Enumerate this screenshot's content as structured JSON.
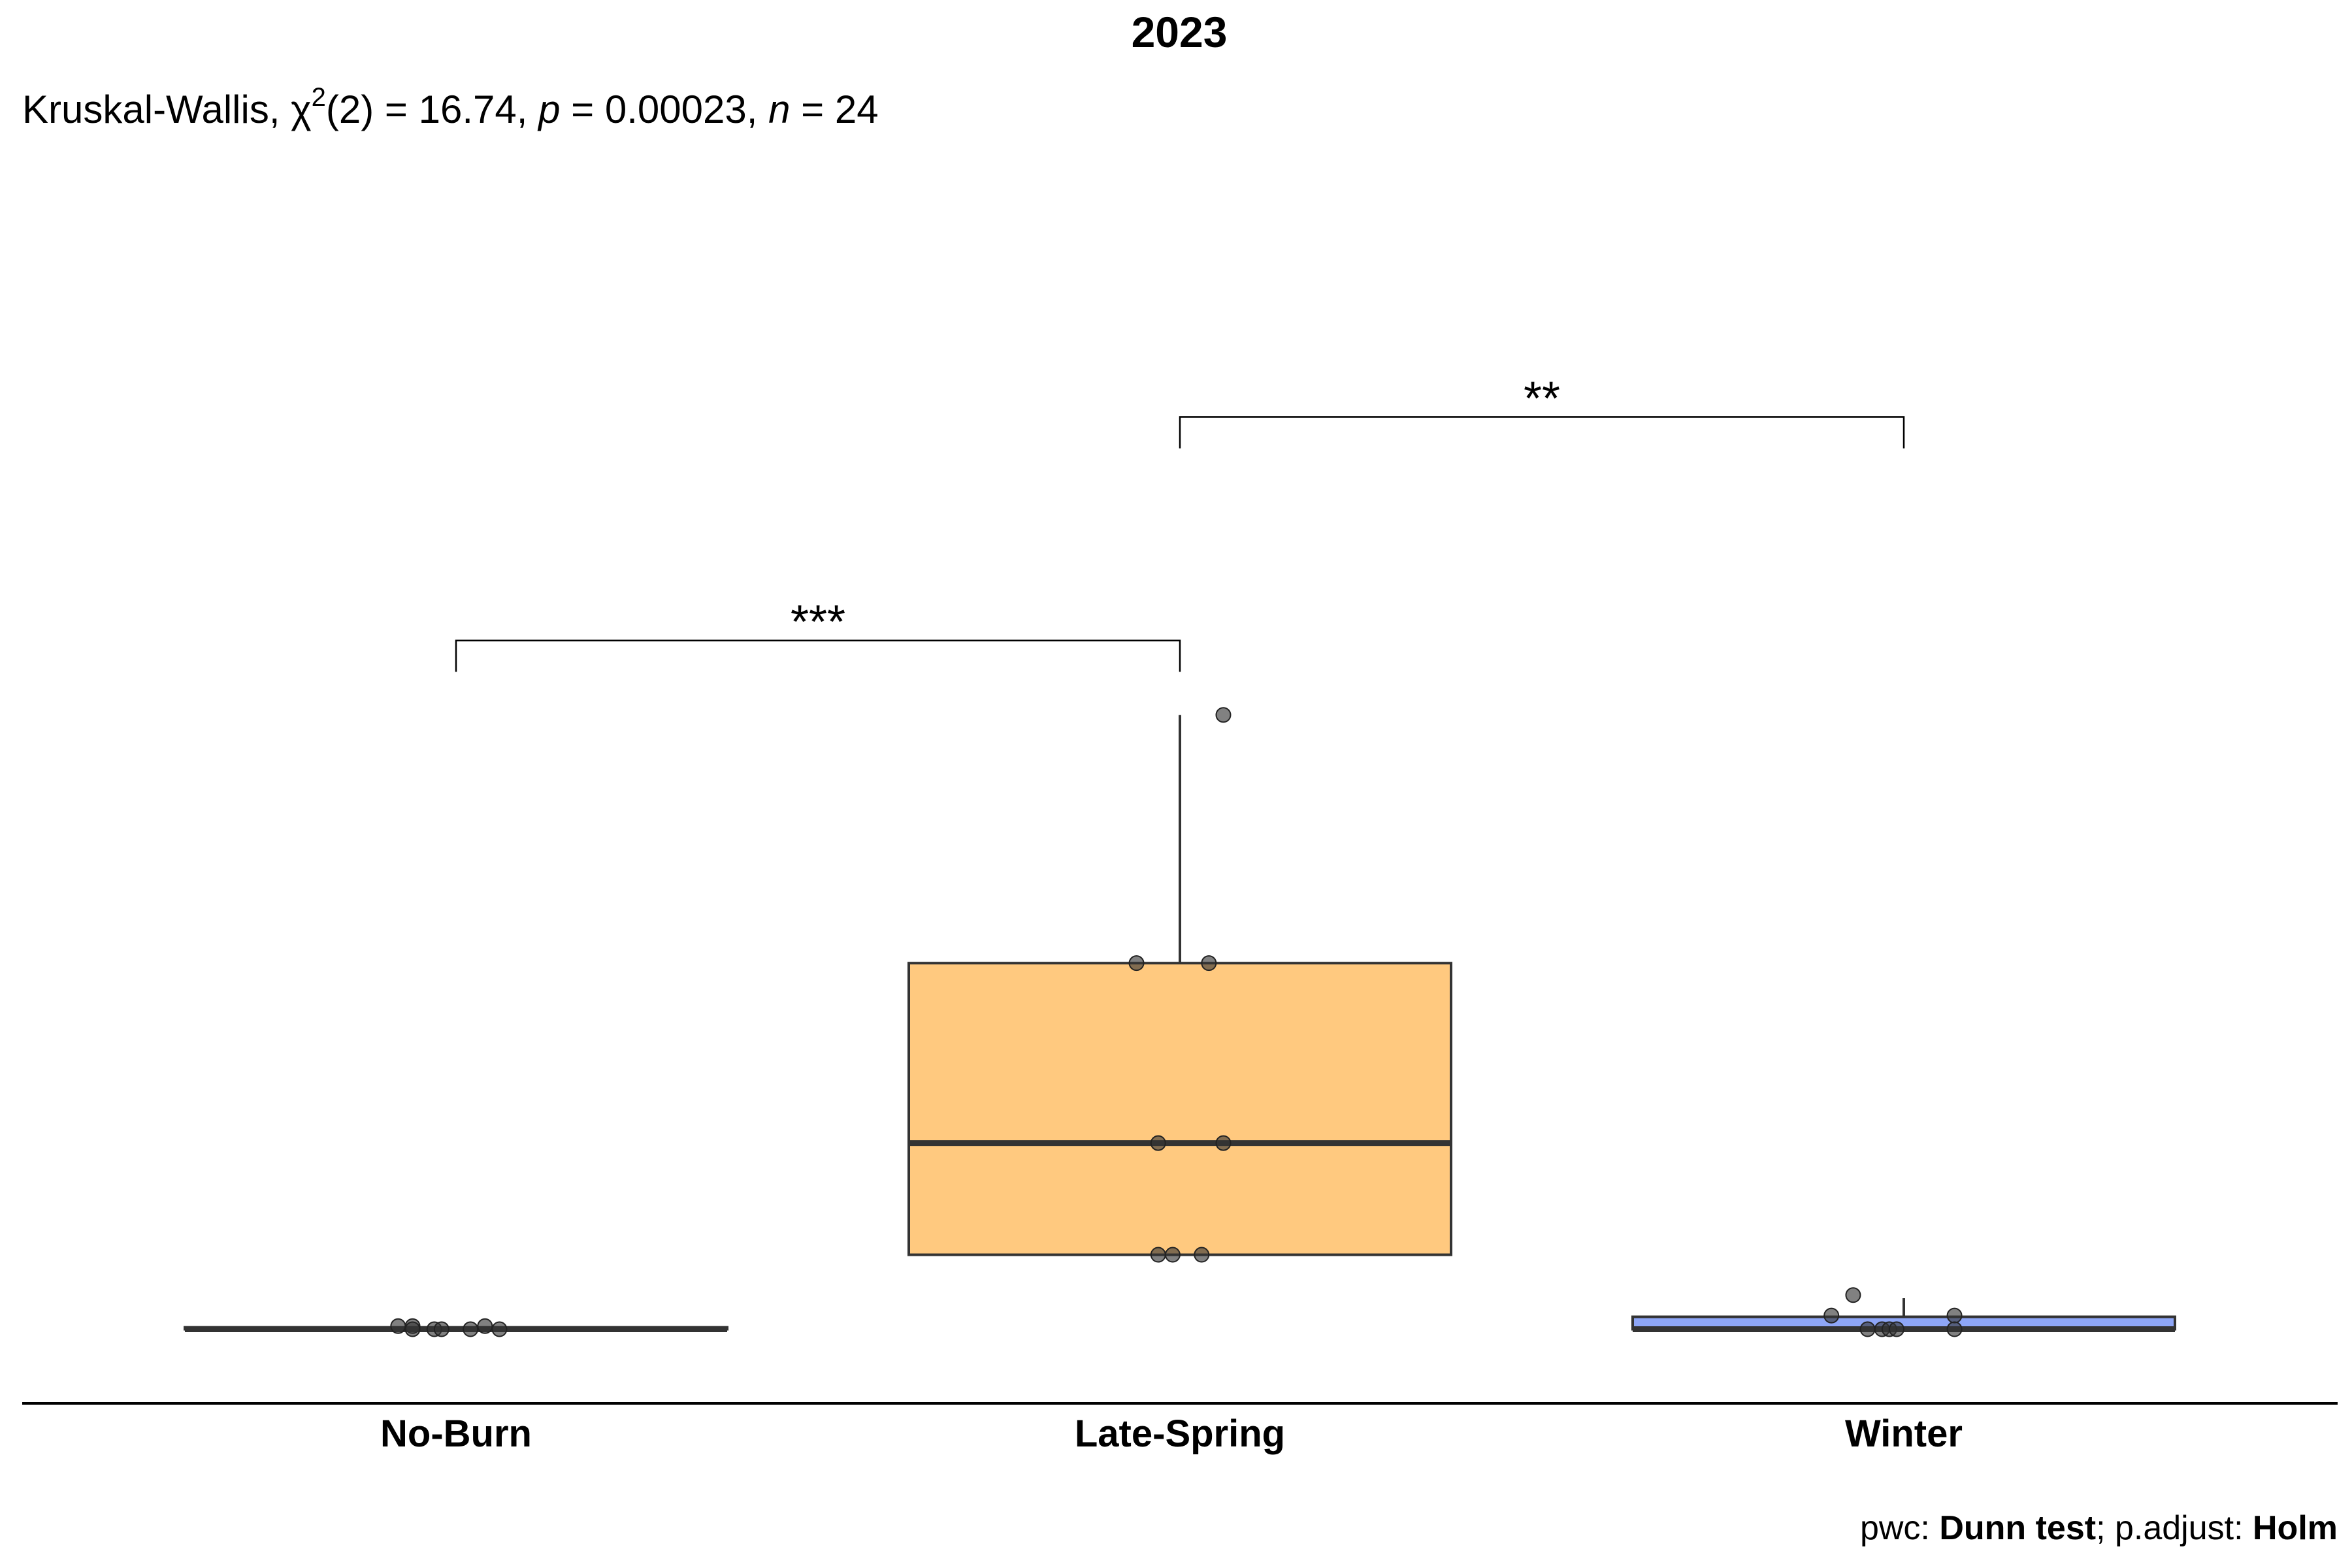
{
  "chart_data": {
    "type": "box",
    "title": "2023",
    "subtitle": {
      "test": "Kruskal-Wallis, ",
      "chi": "χ",
      "chi_sup": "2",
      "df": "(2) = 16.74, ",
      "p_sym": "p",
      "p_val": " = 0.00023, ",
      "n_sym": "n",
      "n_val": " = 24"
    },
    "caption": {
      "prefix": "pwc: ",
      "method": "Dunn test",
      "mid": "; p.adjust: ",
      "adjust": "Holm"
    },
    "xlabel": "",
    "ylabel": "",
    "categories": [
      "No-Burn",
      "Late-Spring",
      "Winter"
    ],
    "y_axis": {
      "shown": false,
      "ylim": [
        -0.9,
        19
      ]
    },
    "grid": false,
    "legend": "none",
    "boxes": [
      {
        "category": "No-Burn",
        "min": 0.0,
        "q1": 0.0,
        "median": 0.0,
        "q3": 0.03,
        "max": 0.03,
        "fill": "#3a3a3a"
      },
      {
        "category": "Late-Spring",
        "min": 1.2,
        "q1": 1.2,
        "median": 3.0,
        "q3": 5.9,
        "max": 9.9,
        "fill": "#ffc97f"
      },
      {
        "category": "Winter",
        "min": 0.0,
        "q1": 0.0,
        "median": 0.0,
        "q3": 0.2,
        "max": 0.5,
        "fill": "#8ea6f7"
      }
    ],
    "points": [
      {
        "category": "No-Burn",
        "values": [
          0.05,
          0.05,
          0.0,
          0.0,
          0.0,
          0.0,
          0.05,
          0.0
        ],
        "offsets": [
          -0.08,
          -0.06,
          -0.06,
          -0.03,
          -0.02,
          0.02,
          0.04,
          0.06
        ]
      },
      {
        "category": "Late-Spring",
        "values": [
          9.9,
          5.9,
          5.9,
          3.0,
          3.0,
          1.2,
          1.2,
          1.2
        ],
        "offsets": [
          0.06,
          -0.06,
          0.04,
          -0.03,
          0.06,
          -0.03,
          -0.01,
          0.03
        ]
      },
      {
        "category": "Winter",
        "values": [
          0.55,
          0.22,
          0.22,
          0.0,
          0.0,
          0.0,
          0.0,
          0.0
        ],
        "offsets": [
          -0.07,
          -0.1,
          0.07,
          -0.05,
          -0.03,
          -0.02,
          -0.01,
          0.07
        ]
      }
    ],
    "comparisons": [
      {
        "group1": "No-Burn",
        "group2": "Late-Spring",
        "label": "***",
        "y": 11.1
      },
      {
        "group1": "Late-Spring",
        "group2": "Winter",
        "label": "**",
        "y": 14.7
      }
    ],
    "colors": {
      "outline": "#333333",
      "point": "#333333",
      "text": "#000000"
    }
  }
}
